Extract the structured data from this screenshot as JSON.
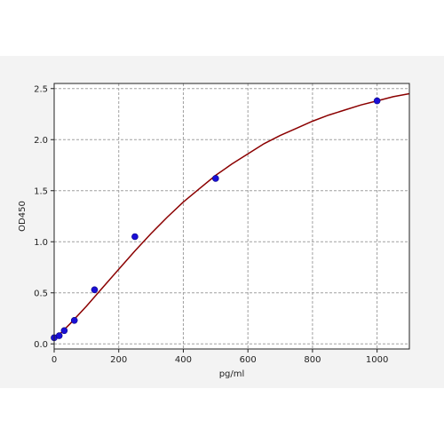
{
  "chart_data": {
    "type": "scatter",
    "title": "",
    "xlabel": "pg/ml",
    "ylabel": "OD450",
    "xlim": [
      0,
      1100
    ],
    "ylim": [
      -0.05,
      2.55
    ],
    "x_ticks": [
      0,
      200,
      400,
      600,
      800,
      1000
    ],
    "y_ticks": [
      0.0,
      0.5,
      1.0,
      1.5,
      2.0,
      2.5
    ],
    "x_tick_labels": [
      "0",
      "200",
      "400",
      "600",
      "800",
      "1000"
    ],
    "y_tick_labels": [
      "0.0",
      "0.5",
      "1.0",
      "1.5",
      "2.0",
      "2.5"
    ],
    "grid": true,
    "series": [
      {
        "kind": "points",
        "color": "#1a0fd6",
        "x": [
          0,
          15.6,
          31.25,
          62.5,
          125,
          250,
          500,
          1000
        ],
        "y": [
          0.06,
          0.08,
          0.13,
          0.23,
          0.53,
          1.05,
          1.62,
          2.38
        ]
      },
      {
        "kind": "fit-curve",
        "color": "#8b0000",
        "x": [
          0,
          50,
          100,
          150,
          200,
          250,
          300,
          350,
          400,
          450,
          500,
          550,
          600,
          650,
          700,
          750,
          800,
          850,
          900,
          950,
          1000,
          1050,
          1100
        ],
        "y": [
          0.04,
          0.2,
          0.37,
          0.55,
          0.73,
          0.91,
          1.08,
          1.24,
          1.39,
          1.52,
          1.65,
          1.76,
          1.86,
          1.96,
          2.04,
          2.11,
          2.18,
          2.24,
          2.29,
          2.34,
          2.38,
          2.42,
          2.45
        ]
      }
    ]
  }
}
